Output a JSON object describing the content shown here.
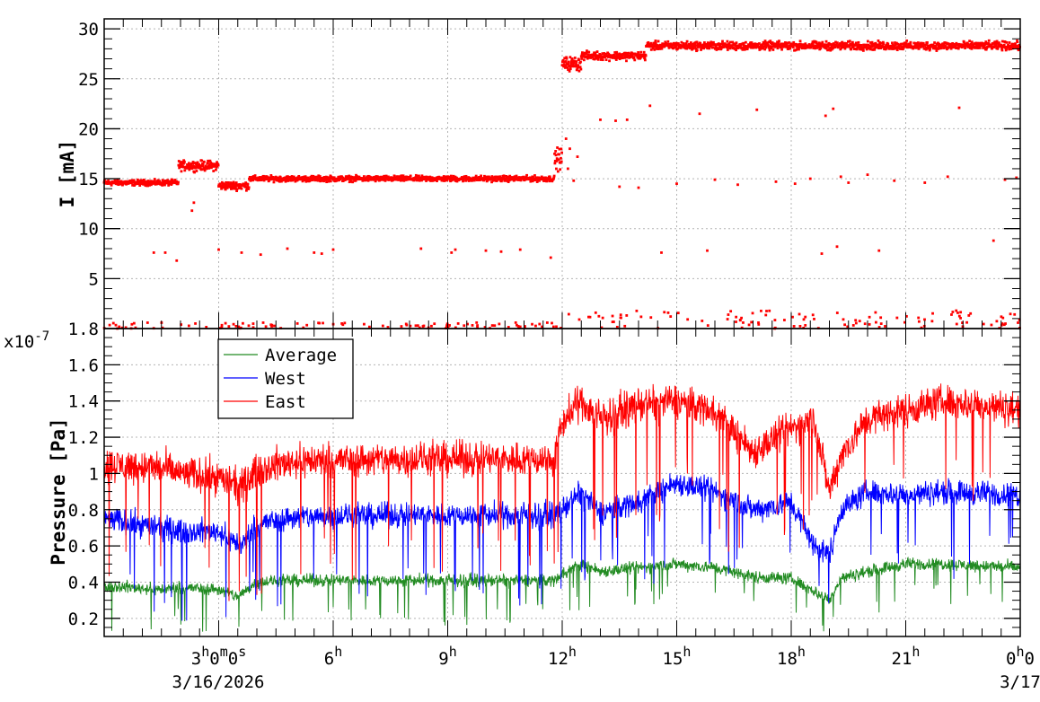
{
  "colors": {
    "current": "#ff0000",
    "average": "#228b22",
    "west": "#0000ff",
    "east": "#ff0000",
    "grid": "#b4b4b4"
  },
  "chart_data": [
    {
      "type": "scatter",
      "ylabel": "I [mA]",
      "xlim": [
        0,
        24
      ],
      "ylim": [
        0,
        31
      ],
      "yticks": [
        "5",
        "10",
        "15",
        "20",
        "25",
        "30"
      ],
      "ytick_values": [
        5,
        10,
        15,
        20,
        25,
        30
      ],
      "grid": true,
      "series": [
        {
          "color": "#ff0000",
          "segments": [
            {
              "t": [
                0.0,
                1.95
              ],
              "level": 14.6,
              "spread": 0.4
            },
            {
              "t": [
                1.95,
                3.0
              ],
              "level": 16.3,
              "spread": 0.7
            },
            {
              "t": [
                3.0,
                3.8
              ],
              "level": 14.3,
              "spread": 0.6
            },
            {
              "t": [
                3.8,
                11.8
              ],
              "level": 15.0,
              "spread": 0.4
            },
            {
              "t": [
                11.8,
                12.0
              ],
              "level": 17.0,
              "spread": 1.5
            },
            {
              "t": [
                12.0,
                12.5
              ],
              "level": 26.5,
              "spread": 1.0
            },
            {
              "t": [
                12.5,
                14.2
              ],
              "level": 27.3,
              "spread": 0.6
            },
            {
              "t": [
                14.2,
                24.0
              ],
              "level": 28.3,
              "spread": 0.6
            }
          ],
          "outliers": [
            [
              1.3,
              7.6
            ],
            [
              1.6,
              7.6
            ],
            [
              1.9,
              6.8
            ],
            [
              2.3,
              11.8
            ],
            [
              2.35,
              12.6
            ],
            [
              3.0,
              7.9
            ],
            [
              3.6,
              7.6
            ],
            [
              4.1,
              7.4
            ],
            [
              4.8,
              8.0
            ],
            [
              5.5,
              7.6
            ],
            [
              5.7,
              7.5
            ],
            [
              6.0,
              7.9
            ],
            [
              8.3,
              8.0
            ],
            [
              9.1,
              7.6
            ],
            [
              9.2,
              7.9
            ],
            [
              10.0,
              7.8
            ],
            [
              10.4,
              7.7
            ],
            [
              10.9,
              7.9
            ],
            [
              11.7,
              7.1
            ],
            [
              13.0,
              20.9
            ],
            [
              13.4,
              20.8
            ],
            [
              13.7,
              20.9
            ],
            [
              14.3,
              22.3
            ],
            [
              15.6,
              21.5
            ],
            [
              16.6,
              14.4
            ],
            [
              17.1,
              21.9
            ],
            [
              17.6,
              14.7
            ],
            [
              18.1,
              14.5
            ],
            [
              18.5,
              15.0
            ],
            [
              18.9,
              21.3
            ],
            [
              19.1,
              22.0
            ],
            [
              19.3,
              15.2
            ],
            [
              19.5,
              14.6
            ],
            [
              20.0,
              15.4
            ],
            [
              20.7,
              14.8
            ],
            [
              21.5,
              14.6
            ],
            [
              22.1,
              15.2
            ],
            [
              22.4,
              22.1
            ],
            [
              23.3,
              8.8
            ],
            [
              23.6,
              14.9
            ],
            [
              23.9,
              15.1
            ],
            [
              13.5,
              14.2
            ],
            [
              14.0,
              14.1
            ],
            [
              14.6,
              7.6
            ],
            [
              15.0,
              14.5
            ],
            [
              15.8,
              7.8
            ],
            [
              18.8,
              7.5
            ],
            [
              19.2,
              8.2
            ],
            [
              20.3,
              7.8
            ],
            [
              16.0,
              14.9
            ],
            [
              12.3,
              14.8
            ],
            [
              12.1,
              19.0
            ],
            [
              12.2,
              18.0
            ],
            [
              12.4,
              17.2
            ],
            [
              12.15,
              16.0
            ]
          ],
          "zero_cluster": [
            [
              0.0,
              0.3
            ],
            [
              1.9,
              0.5
            ],
            [
              3.9,
              0.3
            ],
            [
              11.8,
              0.4
            ],
            [
              12.0,
              1.5
            ],
            [
              24.0,
              1.8
            ]
          ]
        }
      ]
    },
    {
      "type": "line",
      "ylabel": "Pressure [Pa]",
      "multiplier": "x10",
      "multiplier_exp": "-7",
      "xlim": [
        0,
        24
      ],
      "ylim": [
        0.1,
        1.8
      ],
      "yticks": [
        "0.2",
        "0.4",
        "0.6",
        "0.8",
        "1",
        "1.2",
        "1.4",
        "1.6",
        "1.8"
      ],
      "ytick_values": [
        0.2,
        0.4,
        0.6,
        0.8,
        1.0,
        1.2,
        1.4,
        1.6,
        1.8
      ],
      "grid": true,
      "legend": "top-left",
      "xticks": [
        {
          "value": 3,
          "label": "3",
          "sup": "h",
          "rest": "0",
          "sup2": "m",
          "rest2": "0",
          "sup3": "s"
        },
        {
          "value": 6,
          "label": "6",
          "sup": "h"
        },
        {
          "value": 9,
          "label": "9",
          "sup": "h"
        },
        {
          "value": 12,
          "label": "12",
          "sup": "h"
        },
        {
          "value": 15,
          "label": "15",
          "sup": "h"
        },
        {
          "value": 18,
          "label": "18",
          "sup": "h"
        },
        {
          "value": 21,
          "label": "21",
          "sup": "h"
        },
        {
          "value": 24,
          "label": "0",
          "sup": "h",
          "rest": "0"
        }
      ],
      "date_start": "3/16/2026",
      "date_end": "3/17",
      "series": [
        {
          "name": "Average",
          "color": "#228b22",
          "profile": [
            [
              0.0,
              0.38
            ],
            [
              1.5,
              0.36
            ],
            [
              2.0,
              0.37
            ],
            [
              3.0,
              0.36
            ],
            [
              3.5,
              0.32
            ],
            [
              4.0,
              0.4
            ],
            [
              5.0,
              0.41
            ],
            [
              8.0,
              0.41
            ],
            [
              11.8,
              0.41
            ],
            [
              12.0,
              0.45
            ],
            [
              12.5,
              0.5
            ],
            [
              13.0,
              0.46
            ],
            [
              14.0,
              0.48
            ],
            [
              15.0,
              0.5
            ],
            [
              16.0,
              0.48
            ],
            [
              17.0,
              0.43
            ],
            [
              18.0,
              0.42
            ],
            [
              18.6,
              0.35
            ],
            [
              19.0,
              0.3
            ],
            [
              19.3,
              0.42
            ],
            [
              20.0,
              0.46
            ],
            [
              21.0,
              0.5
            ],
            [
              22.0,
              0.5
            ],
            [
              24.0,
              0.48
            ]
          ],
          "noise": 0.05
        },
        {
          "name": "West",
          "color": "#0000ff",
          "profile": [
            [
              0.0,
              0.75
            ],
            [
              1.5,
              0.7
            ],
            [
              2.0,
              0.68
            ],
            [
              3.0,
              0.68
            ],
            [
              3.6,
              0.6
            ],
            [
              4.0,
              0.72
            ],
            [
              5.0,
              0.76
            ],
            [
              8.0,
              0.77
            ],
            [
              11.8,
              0.77
            ],
            [
              12.0,
              0.8
            ],
            [
              12.5,
              0.9
            ],
            [
              13.0,
              0.78
            ],
            [
              14.0,
              0.85
            ],
            [
              15.0,
              0.95
            ],
            [
              16.0,
              0.9
            ],
            [
              17.0,
              0.8
            ],
            [
              18.0,
              0.84
            ],
            [
              18.6,
              0.6
            ],
            [
              19.0,
              0.55
            ],
            [
              19.3,
              0.8
            ],
            [
              20.0,
              0.9
            ],
            [
              21.0,
              0.88
            ],
            [
              22.0,
              0.9
            ],
            [
              24.0,
              0.88
            ]
          ],
          "noise": 0.1
        },
        {
          "name": "East",
          "color": "#ff0000",
          "profile": [
            [
              0.0,
              1.05
            ],
            [
              1.5,
              1.03
            ],
            [
              2.0,
              1.0
            ],
            [
              3.0,
              0.98
            ],
            [
              3.6,
              0.92
            ],
            [
              4.0,
              1.02
            ],
            [
              5.0,
              1.07
            ],
            [
              8.0,
              1.08
            ],
            [
              11.8,
              1.08
            ],
            [
              12.0,
              1.28
            ],
            [
              12.5,
              1.4
            ],
            [
              13.0,
              1.3
            ],
            [
              14.0,
              1.38
            ],
            [
              15.0,
              1.4
            ],
            [
              16.0,
              1.35
            ],
            [
              17.0,
              1.12
            ],
            [
              18.0,
              1.25
            ],
            [
              18.6,
              1.3
            ],
            [
              19.0,
              0.9
            ],
            [
              19.3,
              1.1
            ],
            [
              20.0,
              1.3
            ],
            [
              21.0,
              1.35
            ],
            [
              22.0,
              1.4
            ],
            [
              24.0,
              1.35
            ]
          ],
          "noise": 0.14
        }
      ]
    }
  ]
}
